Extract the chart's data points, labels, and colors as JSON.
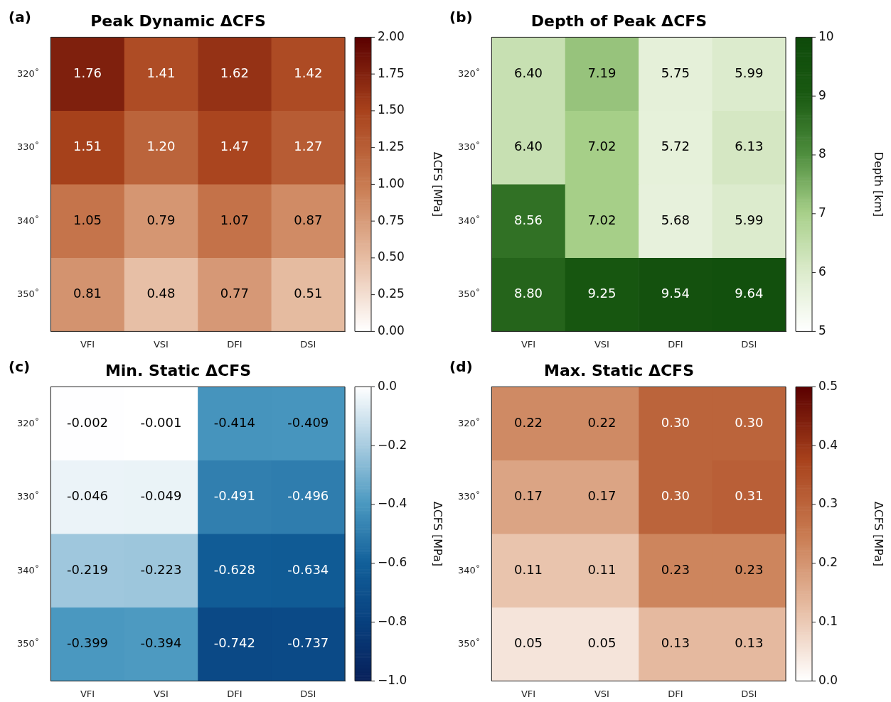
{
  "chart_data": [
    {
      "type": "heatmap",
      "title": "Peak Dynamic ΔCFS",
      "annotations": [
        "(a)"
      ],
      "categories": [
        "VFI",
        "VSI",
        "DFI",
        "DSI"
      ],
      "y_categories": [
        "320˚",
        "330˚",
        "340˚",
        "350˚"
      ],
      "cells": [
        [
          1.76,
          1.41,
          1.62,
          1.42
        ],
        [
          1.51,
          1.2,
          1.47,
          1.27
        ],
        [
          1.05,
          0.79,
          1.07,
          0.87
        ],
        [
          0.81,
          0.48,
          0.77,
          0.51
        ]
      ],
      "cell_labels": [
        [
          "1.76",
          "1.41",
          "1.62",
          "1.42"
        ],
        [
          "1.51",
          "1.20",
          "1.47",
          "1.27"
        ],
        [
          "1.05",
          "0.79",
          "1.07",
          "0.87"
        ],
        [
          "0.81",
          "0.48",
          "0.77",
          "0.51"
        ]
      ],
      "data_labels": true,
      "clim": [
        0,
        2
      ],
      "cticks": [
        {
          "value": 0,
          "label": "0.00"
        },
        {
          "value": 0.25,
          "label": "0.25"
        },
        {
          "value": 0.5,
          "label": "0.50"
        },
        {
          "value": 0.75,
          "label": "0.75"
        },
        {
          "value": 1,
          "label": "1.00"
        },
        {
          "value": 1.25,
          "label": "1.25"
        },
        {
          "value": 1.5,
          "label": "1.50"
        },
        {
          "value": 1.75,
          "label": "1.75"
        },
        {
          "value": 2,
          "label": "2.00"
        }
      ],
      "clabel": "ΔCFS [MPa]",
      "colors": [
        "#ffffff",
        "#e6bca2",
        "#c87a50",
        "#a8421c",
        "#5a0000"
      ]
    },
    {
      "type": "heatmap",
      "title": "Depth of Peak ΔCFS",
      "annotations": [
        "(b)"
      ],
      "categories": [
        "VFI",
        "VSI",
        "DFI",
        "DSI"
      ],
      "y_categories": [
        "320˚",
        "330˚",
        "340˚",
        "350˚"
      ],
      "cells": [
        [
          6.4,
          7.19,
          5.75,
          5.99
        ],
        [
          6.4,
          7.02,
          5.72,
          6.13
        ],
        [
          8.56,
          7.02,
          5.68,
          5.99
        ],
        [
          8.8,
          9.25,
          9.54,
          9.64
        ]
      ],
      "cell_labels": [
        [
          "6.40",
          "7.19",
          "5.75",
          "5.99"
        ],
        [
          "6.40",
          "7.02",
          "5.72",
          "6.13"
        ],
        [
          "8.56",
          "7.02",
          "5.68",
          "5.99"
        ],
        [
          "8.80",
          "9.25",
          "9.54",
          "9.64"
        ]
      ],
      "data_labels": true,
      "clim": [
        5,
        10
      ],
      "cticks": [
        5,
        6,
        7,
        8,
        9,
        10
      ],
      "clabel": "Depth [km]",
      "colors": [
        "#ffffff",
        "#dcebcc",
        "#a8d08a",
        "#4f8e3e",
        "#1a5a12",
        "#0e4a0a"
      ]
    },
    {
      "type": "heatmap",
      "title": "Min. Static ΔCFS",
      "annotations": [
        "(c)"
      ],
      "categories": [
        "VFI",
        "VSI",
        "DFI",
        "DSI"
      ],
      "y_categories": [
        "320˚",
        "330˚",
        "340˚",
        "350˚"
      ],
      "cells": [
        [
          -0.002,
          -0.001,
          -0.414,
          -0.409
        ],
        [
          -0.046,
          -0.049,
          -0.491,
          -0.496
        ],
        [
          -0.219,
          -0.223,
          -0.628,
          -0.634
        ],
        [
          -0.399,
          -0.394,
          -0.742,
          -0.737
        ]
      ],
      "data_labels": true,
      "clim": [
        -1,
        0
      ],
      "cticks": [
        {
          "value": -1,
          "label": "−1.0"
        },
        {
          "value": -0.8,
          "label": "−0.8"
        },
        {
          "value": -0.6,
          "label": "−0.6"
        },
        {
          "value": -0.4,
          "label": "−0.4"
        },
        {
          "value": -0.2,
          "label": "−0.2"
        },
        {
          "value": 0,
          "label": "0.0"
        }
      ],
      "clabel": "ΔCFS [MPa]",
      "colors": [
        "#08205a",
        "#08407e",
        "#12609a",
        "#4a98c0",
        "#a8cce0",
        "#ffffff"
      ]
    },
    {
      "type": "heatmap",
      "title": "Max. Static ΔCFS",
      "annotations": [
        "(d)"
      ],
      "categories": [
        "VFI",
        "VSI",
        "DFI",
        "DSI"
      ],
      "y_categories": [
        "320˚",
        "330˚",
        "340˚",
        "350˚"
      ],
      "cells": [
        [
          0.22,
          0.22,
          0.3,
          0.3
        ],
        [
          0.17,
          0.17,
          0.3,
          0.31
        ],
        [
          0.11,
          0.11,
          0.23,
          0.23
        ],
        [
          0.05,
          0.05,
          0.13,
          0.13
        ]
      ],
      "cell_labels": [
        [
          "0.22",
          "0.22",
          "0.30",
          "0.30"
        ],
        [
          "0.17",
          "0.17",
          "0.30",
          "0.31"
        ],
        [
          "0.11",
          "0.11",
          "0.23",
          "0.23"
        ],
        [
          "0.05",
          "0.05",
          "0.13",
          "0.13"
        ]
      ],
      "data_labels": true,
      "clim": [
        0,
        0.5
      ],
      "cticks": [
        {
          "value": 0,
          "label": "0.0"
        },
        0.1,
        0.2,
        0.3,
        0.4,
        {
          "value": 0.5,
          "label": "0.5"
        }
      ],
      "clabel": "ΔCFS [MPa]",
      "colors": [
        "#ffffff",
        "#e6bca2",
        "#c87a50",
        "#a8421c",
        "#5a0000"
      ]
    }
  ]
}
